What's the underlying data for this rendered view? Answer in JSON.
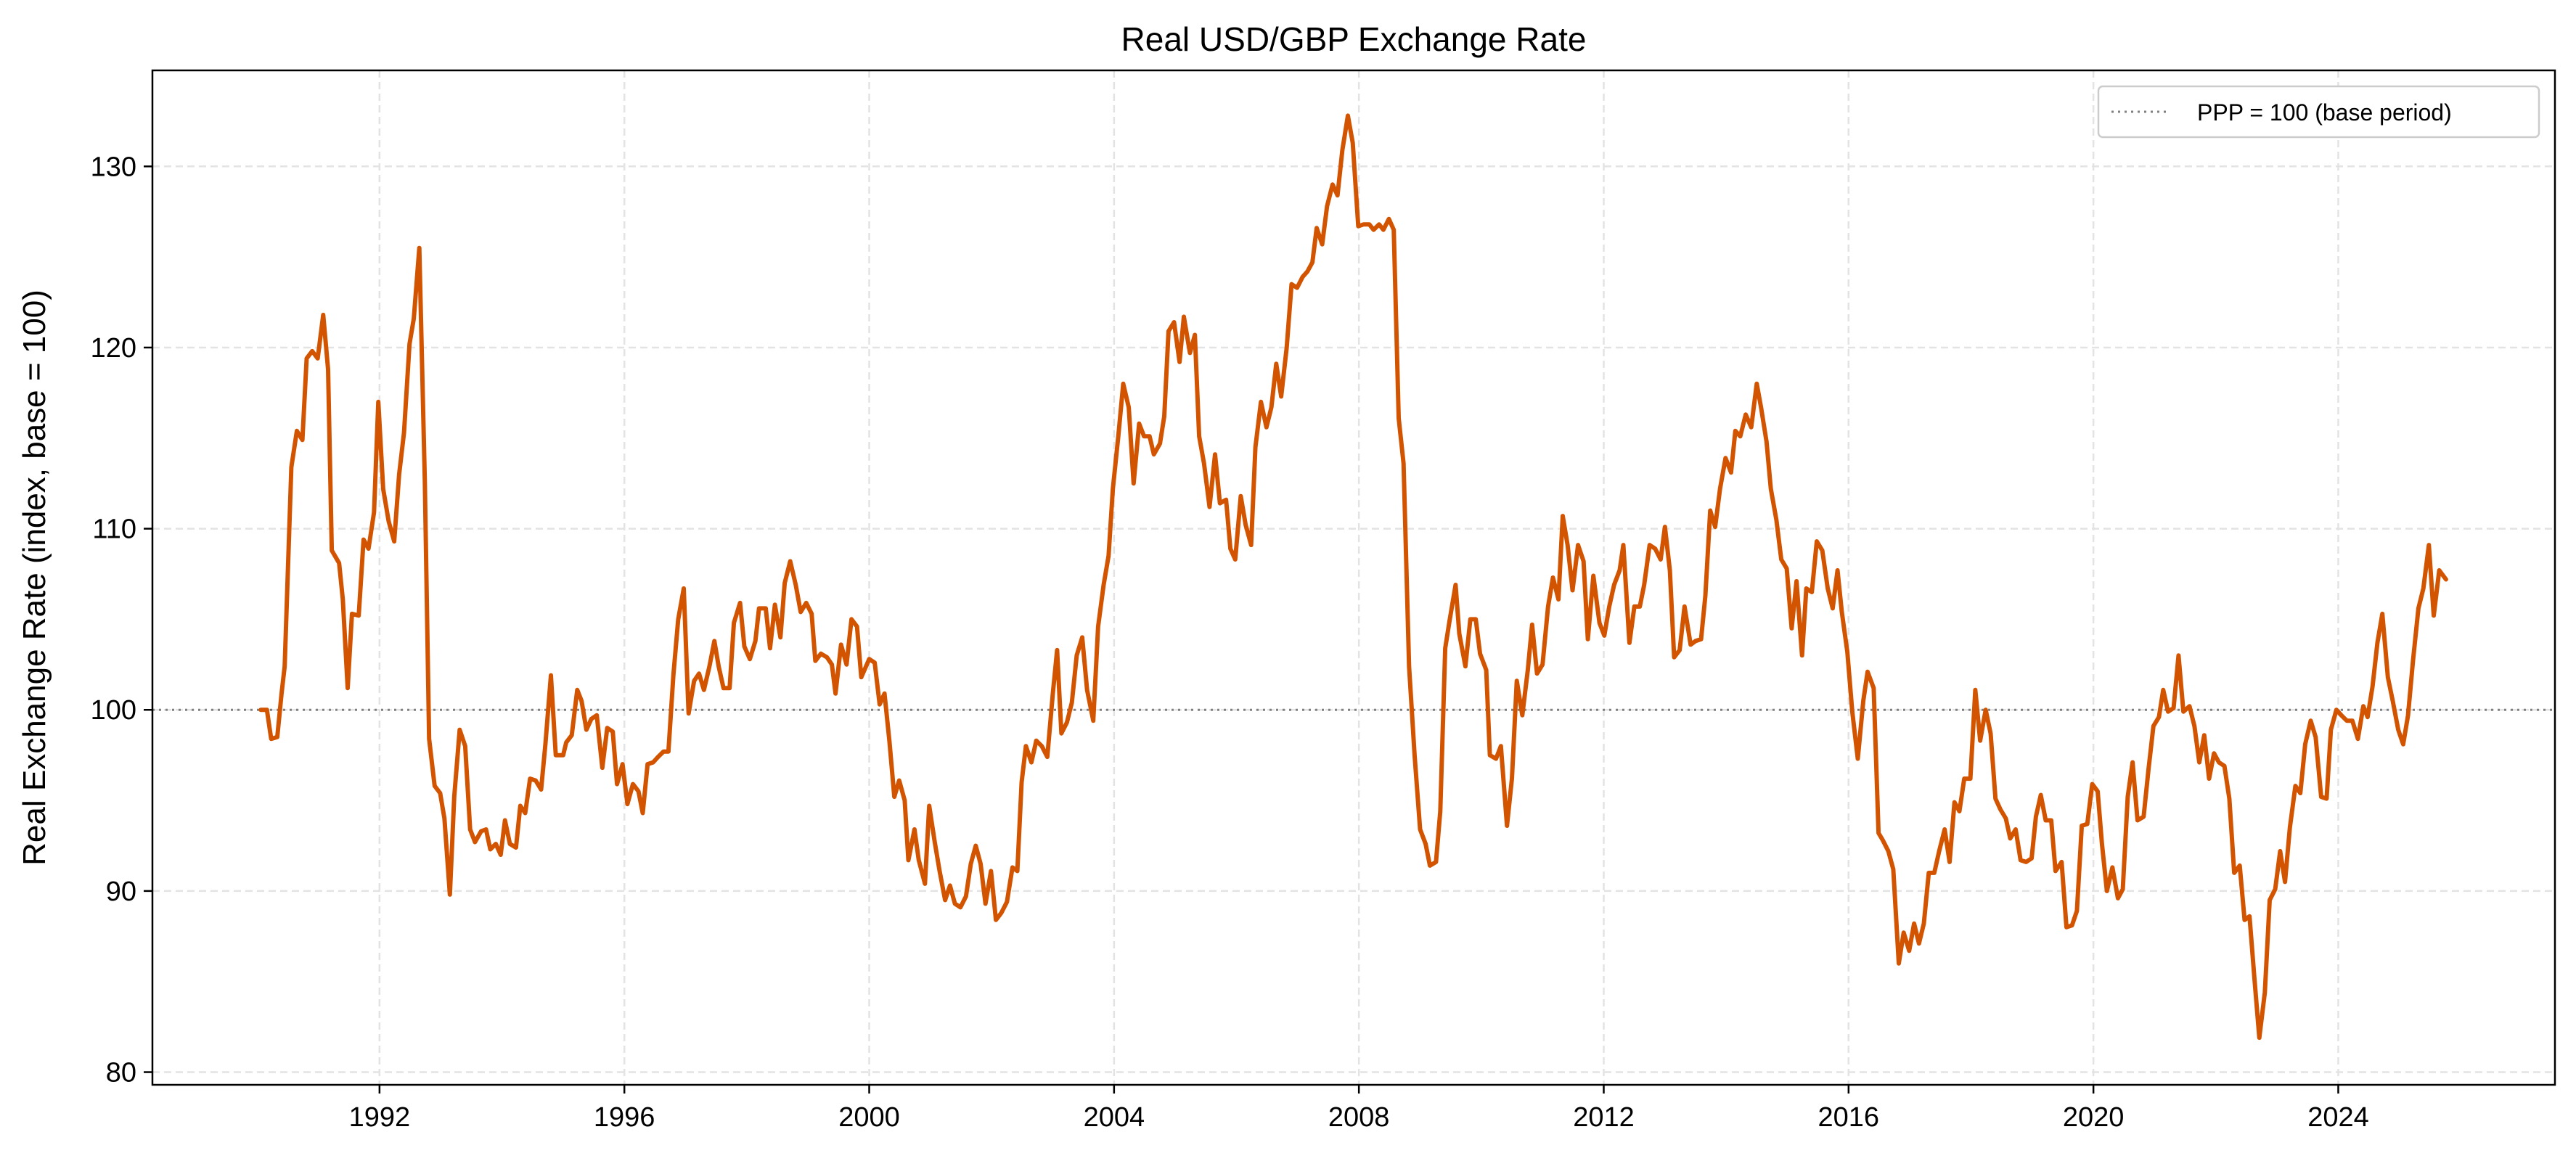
{
  "chart_data": {
    "type": "line",
    "title": "Real USD/GBP Exchange Rate",
    "xlabel": "",
    "ylabel": "Real Exchange Rate (index, base = 100)",
    "xlim": [
      1988.29,
      2027.54
    ],
    "ylim": [
      79.3,
      135.3
    ],
    "xticks": [
      1992,
      1996,
      2000,
      2004,
      2008,
      2012,
      2016,
      2020,
      2024
    ],
    "xtick_labels": [
      "1992",
      "1996",
      "2000",
      "2004",
      "2008",
      "2012",
      "2016",
      "2020",
      "2024"
    ],
    "yticks": [
      80,
      90,
      100,
      110,
      120,
      130
    ],
    "ytick_labels": [
      "80",
      "90",
      "100",
      "110",
      "120",
      "130"
    ],
    "grid": true,
    "legend": {
      "placement": "top-right",
      "entries": [
        "PPP = 100 (base period)"
      ]
    },
    "reference_line": {
      "y": 100,
      "label": "PPP = 100 (base period)",
      "color": "#808080",
      "style": "dotted"
    },
    "series": [
      {
        "name": "Real USD/GBP",
        "color": "#d35400",
        "x": [
          1990.06,
          1990.16,
          1990.23,
          1990.33,
          1990.4,
          1990.45,
          1990.56,
          1990.65,
          1990.74,
          1990.81,
          1990.9,
          1990.99,
          1991.08,
          1991.16,
          1991.22,
          1991.34,
          1991.4,
          1991.48,
          1991.55,
          1991.66,
          1991.74,
          1991.82,
          1991.91,
          1991.98,
          1992.06,
          1992.15,
          1992.24,
          1992.32,
          1992.4,
          1992.49,
          1992.56,
          1992.65,
          1992.74,
          1992.81,
          1992.9,
          1992.99,
          1993.06,
          1993.15,
          1993.22,
          1993.31,
          1993.4,
          1993.48,
          1993.56,
          1993.66,
          1993.74,
          1993.81,
          1993.9,
          1993.98,
          1994.05,
          1994.13,
          1994.23,
          1994.3,
          1994.38,
          1994.46,
          1994.55,
          1994.64,
          1994.71,
          1994.8,
          1994.88,
          1995.0,
          1995.05,
          1995.14,
          1995.23,
          1995.3,
          1995.38,
          1995.46,
          1995.55,
          1995.64,
          1995.72,
          1995.81,
          1995.88,
          1995.97,
          1996.05,
          1996.14,
          1996.23,
          1996.3,
          1996.38,
          1996.47,
          1996.55,
          1996.64,
          1996.72,
          1996.8,
          1996.88,
          1996.97,
          1997.05,
          1997.14,
          1997.22,
          1997.3,
          1997.39,
          1997.47,
          1997.54,
          1997.62,
          1997.72,
          1997.79,
          1997.89,
          1997.96,
          1998.05,
          1998.14,
          1998.2,
          1998.31,
          1998.38,
          1998.46,
          1998.55,
          1998.62,
          1998.71,
          1998.8,
          1998.88,
          1998.97,
          1999.06,
          1999.12,
          1999.21,
          1999.31,
          1999.39,
          1999.45,
          1999.54,
          1999.63,
          1999.71,
          1999.8,
          1999.87,
          2000.0,
          2000.09,
          2000.17,
          2000.25,
          2000.33,
          2000.41,
          2000.49,
          2000.58,
          2000.64,
          2000.74,
          2000.81,
          2000.91,
          2000.98,
          2001.07,
          2001.15,
          2001.24,
          2001.32,
          2001.4,
          2001.49,
          2001.58,
          2001.66,
          2001.74,
          2001.82,
          2001.9,
          2001.99,
          2002.07,
          2002.16,
          2002.25,
          2002.34,
          2002.42,
          2002.49,
          2002.56,
          2002.65,
          2002.73,
          2002.82,
          2002.91,
          2003.0,
          2003.07,
          2003.14,
          2003.23,
          2003.31,
          2003.39,
          2003.48,
          2003.56,
          2003.66,
          2003.74,
          2003.83,
          2003.91,
          2003.98,
          2004.07,
          2004.15,
          2004.24,
          2004.32,
          2004.41,
          2004.49,
          2004.58,
          2004.65,
          2004.75,
          2004.82,
          2004.89,
          2004.98,
          2005.07,
          2005.14,
          2005.24,
          2005.32,
          2005.39,
          2005.47,
          2005.56,
          2005.65,
          2005.73,
          2005.83,
          2005.9,
          2005.98,
          2006.07,
          2006.15,
          2006.24,
          2006.31,
          2006.4,
          2006.49,
          2006.57,
          2006.65,
          2006.73,
          2006.82,
          2006.9,
          2006.99,
          2007.08,
          2007.16,
          2007.24,
          2007.31,
          2007.4,
          2007.48,
          2007.57,
          2007.65,
          2007.73,
          2007.82,
          2007.9,
          2007.99,
          2008.08,
          2008.17,
          2008.24,
          2008.33,
          2008.4,
          2008.49,
          2008.57,
          2008.65,
          2008.73,
          2008.82,
          2008.91,
          2009.0,
          2009.09,
          2009.16,
          2009.26,
          2009.33,
          2009.41,
          2009.48,
          2009.58,
          2009.64,
          2009.74,
          2009.82,
          2009.91,
          2009.98,
          2010.08,
          2010.14,
          2010.24,
          2010.32,
          2010.42,
          2010.5,
          2010.58,
          2010.67,
          2010.76,
          2010.83,
          2010.91,
          2011.0,
          2011.09,
          2011.17,
          2011.26,
          2011.33,
          2011.41,
          2011.49,
          2011.58,
          2011.67,
          2011.74,
          2011.83,
          2011.93,
          2012.01,
          2012.09,
          2012.17,
          2012.26,
          2012.32,
          2012.42,
          2012.5,
          2012.59,
          2012.66,
          2012.75,
          2012.84,
          2012.93,
          2013.0,
          2013.08,
          2013.15,
          2013.24,
          2013.32,
          2013.42,
          2013.5,
          2013.59,
          2013.66,
          2013.74,
          2013.82,
          2013.9,
          2013.99,
          2014.08,
          2014.15,
          2014.23,
          2014.32,
          2014.41,
          2014.5,
          2014.57,
          2014.66,
          2014.73,
          2014.82,
          2014.9,
          2014.99,
          2015.07,
          2015.15,
          2015.24,
          2015.31,
          2015.4,
          2015.48,
          2015.57,
          2015.66,
          2015.74,
          2015.82,
          2015.89,
          2015.98,
          2016.06,
          2016.15,
          2016.24,
          2016.31,
          2016.41,
          2016.49,
          2016.56,
          2016.65,
          2016.73,
          2016.82,
          2016.9,
          2016.99,
          2017.07,
          2017.15,
          2017.23,
          2017.31,
          2017.4,
          2017.48,
          2017.57,
          2017.65,
          2017.73,
          2017.81,
          2017.89,
          2017.99,
          2018.07,
          2018.15,
          2018.24,
          2018.32,
          2018.4,
          2018.48,
          2018.57,
          2018.64,
          2018.73,
          2018.81,
          2018.9,
          2018.99,
          2019.06,
          2019.14,
          2019.22,
          2019.31,
          2019.38,
          2019.48,
          2019.56,
          2019.65,
          2019.73,
          2019.81,
          2019.9,
          2019.98,
          2020.07,
          2020.14,
          2020.22,
          2020.31,
          2020.4,
          2020.48,
          2020.56,
          2020.64,
          2020.72,
          2020.82,
          2020.9,
          2020.98,
          2021.07,
          2021.14,
          2021.22,
          2021.31,
          2021.39,
          2021.47,
          2021.57,
          2021.65,
          2021.73,
          2021.81,
          2021.89,
          2021.97,
          2022.05,
          2022.14,
          2022.22,
          2022.3,
          2022.39,
          2022.47,
          2022.55,
          2022.63,
          2022.71,
          2022.8,
          2022.88,
          2022.97,
          2023.05,
          2023.13,
          2023.21,
          2023.3,
          2023.38,
          2023.46,
          2023.55,
          2023.63,
          2023.72,
          2023.81,
          2023.88,
          2023.97,
          2024.05,
          2024.14,
          2024.23,
          2024.32,
          2024.41,
          2024.48,
          2024.56,
          2024.64,
          2024.72,
          2024.81,
          2024.89,
          2024.98,
          2025.06,
          2025.14,
          2025.22,
          2025.31,
          2025.39,
          2025.48,
          2025.56,
          2025.65,
          2025.76
        ],
        "y": [
          100.0,
          100.0,
          98.4,
          98.5,
          100.9,
          102.4,
          113.4,
          115.4,
          114.9,
          119.4,
          119.8,
          119.4,
          121.8,
          118.8,
          108.8,
          108.1,
          106.1,
          101.2,
          105.3,
          105.2,
          109.4,
          108.9,
          110.9,
          117.0,
          112.2,
          110.4,
          109.3,
          113.0,
          115.3,
          120.2,
          121.6,
          125.5,
          112.6,
          98.4,
          95.8,
          95.4,
          94.0,
          89.8,
          95.2,
          98.9,
          98.0,
          93.4,
          92.7,
          93.3,
          93.4,
          92.3,
          92.6,
          92.0,
          93.9,
          92.6,
          92.4,
          94.7,
          94.3,
          96.2,
          96.1,
          95.6,
          98.1,
          101.9,
          97.5,
          97.5,
          98.2,
          98.6,
          101.1,
          100.5,
          98.9,
          99.5,
          99.7,
          96.8,
          99.0,
          98.8,
          95.9,
          97.0,
          94.8,
          95.9,
          95.5,
          94.3,
          97.0,
          97.1,
          97.4,
          97.7,
          97.7,
          101.9,
          105.0,
          106.7,
          99.8,
          101.6,
          102.0,
          101.1,
          102.4,
          103.8,
          102.4,
          101.2,
          101.2,
          104.8,
          105.9,
          103.5,
          102.8,
          103.8,
          105.6,
          105.6,
          103.4,
          105.8,
          104.0,
          107.0,
          108.2,
          106.9,
          105.4,
          105.9,
          105.3,
          102.7,
          103.1,
          102.9,
          102.5,
          100.9,
          103.6,
          102.5,
          105.0,
          104.6,
          101.8,
          102.8,
          102.6,
          100.3,
          100.9,
          98.3,
          95.2,
          96.1,
          95.0,
          91.7,
          93.4,
          91.7,
          90.4,
          94.7,
          92.7,
          91.1,
          89.5,
          90.3,
          89.3,
          89.1,
          89.7,
          91.5,
          92.5,
          91.5,
          89.3,
          91.1,
          88.4,
          88.8,
          89.4,
          91.3,
          91.1,
          96.0,
          98.0,
          97.1,
          98.3,
          98.0,
          97.4,
          100.9,
          103.3,
          98.7,
          99.3,
          100.4,
          103.0,
          104.0,
          101.1,
          99.4,
          104.6,
          106.9,
          108.5,
          112.2,
          115.1,
          118.0,
          116.7,
          112.5,
          115.8,
          115.1,
          115.1,
          114.1,
          114.7,
          116.2,
          120.9,
          121.4,
          119.2,
          121.7,
          119.7,
          120.7,
          115.1,
          113.6,
          111.2,
          114.1,
          111.4,
          111.6,
          108.9,
          108.3,
          111.8,
          110.2,
          109.1,
          114.5,
          117.0,
          115.6,
          116.7,
          119.1,
          117.3,
          120.0,
          123.5,
          123.3,
          123.9,
          124.2,
          124.7,
          126.6,
          125.7,
          127.8,
          129.0,
          128.4,
          130.9,
          132.8,
          131.3,
          126.7,
          126.8,
          126.8,
          126.5,
          126.8,
          126.5,
          127.1,
          126.5,
          116.1,
          113.6,
          102.4,
          97.5,
          93.4,
          92.6,
          91.4,
          91.6,
          94.4,
          103.4,
          104.9,
          106.9,
          104.2,
          102.4,
          105.0,
          105.0,
          103.1,
          102.2,
          97.5,
          97.3,
          98.0,
          93.6,
          96.2,
          101.6,
          99.7,
          102.2,
          104.7,
          102.0,
          102.5,
          105.7,
          107.3,
          106.1,
          110.7,
          109.1,
          106.6,
          109.1,
          108.2,
          103.9,
          107.4,
          104.8,
          104.1,
          105.7,
          106.9,
          107.7,
          109.1,
          103.7,
          105.7,
          105.7,
          106.9,
          109.1,
          108.9,
          108.3,
          110.1,
          107.7,
          102.9,
          103.3,
          105.7,
          103.6,
          103.8,
          103.9,
          106.3,
          111.0,
          110.1,
          112.2,
          113.9,
          113.1,
          115.4,
          115.1,
          116.3,
          115.6,
          118.0,
          116.7,
          114.8,
          112.2,
          110.5,
          108.3,
          107.8,
          104.5,
          107.1,
          103.0,
          106.7,
          106.5,
          109.3,
          108.8,
          106.7,
          105.6,
          107.7,
          105.4,
          103.2,
          99.9,
          97.3,
          100.5,
          102.1,
          101.2,
          93.2,
          92.8,
          92.2,
          91.2,
          86.0,
          87.7,
          86.7,
          88.2,
          87.1,
          88.2,
          91.0,
          91.0,
          92.2,
          93.4,
          91.6,
          94.9,
          94.4,
          96.2,
          96.2,
          101.1,
          98.3,
          100.0,
          98.7,
          95.1,
          94.5,
          94.0,
          92.9,
          93.4,
          91.7,
          91.6,
          91.8,
          94.1,
          95.3,
          93.9,
          93.9,
          91.1,
          91.6,
          88.0,
          88.1,
          88.9,
          93.6,
          93.7,
          95.9,
          95.5,
          92.6,
          90.0,
          91.3,
          89.6,
          90.1,
          95.2,
          97.1,
          93.9,
          94.1,
          96.7,
          99.1,
          99.6,
          101.1,
          99.9,
          100.1,
          103.0,
          99.9,
          100.2,
          99.1,
          97.1,
          98.6,
          96.2,
          97.6,
          97.1,
          96.9,
          95.1,
          91.0,
          91.4,
          88.4,
          88.6,
          85.2,
          81.9,
          84.4,
          89.5,
          90.1,
          92.2,
          90.5,
          93.5,
          95.8,
          95.4,
          98.1,
          99.4,
          98.5,
          95.2,
          95.1,
          98.9,
          100.0,
          99.7,
          99.4,
          99.4,
          98.4,
          100.2,
          99.6,
          101.3,
          103.7,
          105.3,
          101.8,
          100.5,
          98.9,
          98.1,
          99.7,
          102.7,
          105.6,
          106.7,
          109.1,
          105.2,
          107.7,
          107.2
        ]
      }
    ]
  }
}
